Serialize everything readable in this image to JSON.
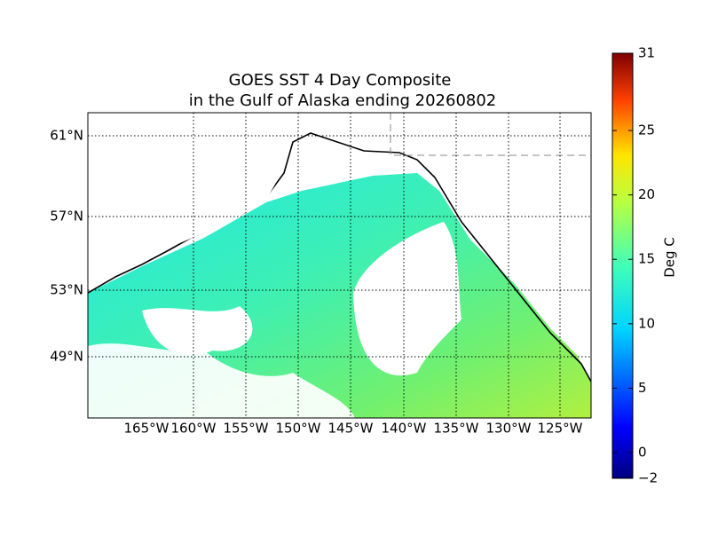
{
  "title": {
    "line1": "GOES SST 4 Day Composite",
    "line2": "in the Gulf of Alaska ending 20260802"
  },
  "longitude_labels": [
    "165°W",
    "160°W",
    "155°W",
    "150°W",
    "145°W",
    "140°W",
    "135°W",
    "130°W",
    "125°W"
  ],
  "latitude_labels": [
    "61°N",
    "57°N",
    "53°N",
    "49°N"
  ],
  "colorbar": {
    "label": "Deg C",
    "range": [
      -2,
      31
    ],
    "ticks": [
      {
        "value": -2,
        "label": "−2"
      },
      0,
      5,
      10,
      15,
      20,
      25,
      31
    ]
  }
}
